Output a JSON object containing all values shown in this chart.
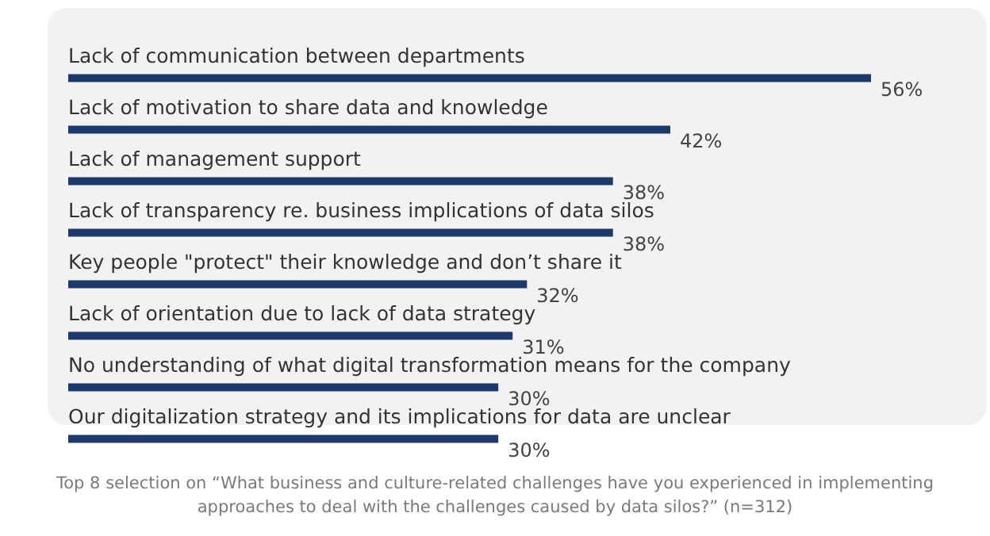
{
  "chart_data": {
    "type": "bar",
    "orientation": "horizontal",
    "categories": [
      "Lack of communication between departments",
      "Lack of motivation to share data and knowledge",
      "Lack of management support",
      "Lack of transparency re. business implications of data silos",
      "Key people \"protect\" their knowledge and don’t share it",
      "Lack of orientation due to lack of data strategy",
      "No understanding of what digital transformation means for the company",
      "Our digitalization strategy and its implications for data are unclear"
    ],
    "values": [
      56,
      42,
      38,
      38,
      32,
      31,
      30,
      30
    ],
    "value_labels": [
      "56%",
      "42%",
      "38%",
      "38%",
      "32%",
      "31%",
      "30%",
      "30%"
    ],
    "color": "#1b3a6b",
    "annotations": [
      "Top 8 selection on “What business and culture-related challenges have you experienced in implementing approaches to deal with the challenges caused by data silos?” (n=312)"
    ]
  }
}
